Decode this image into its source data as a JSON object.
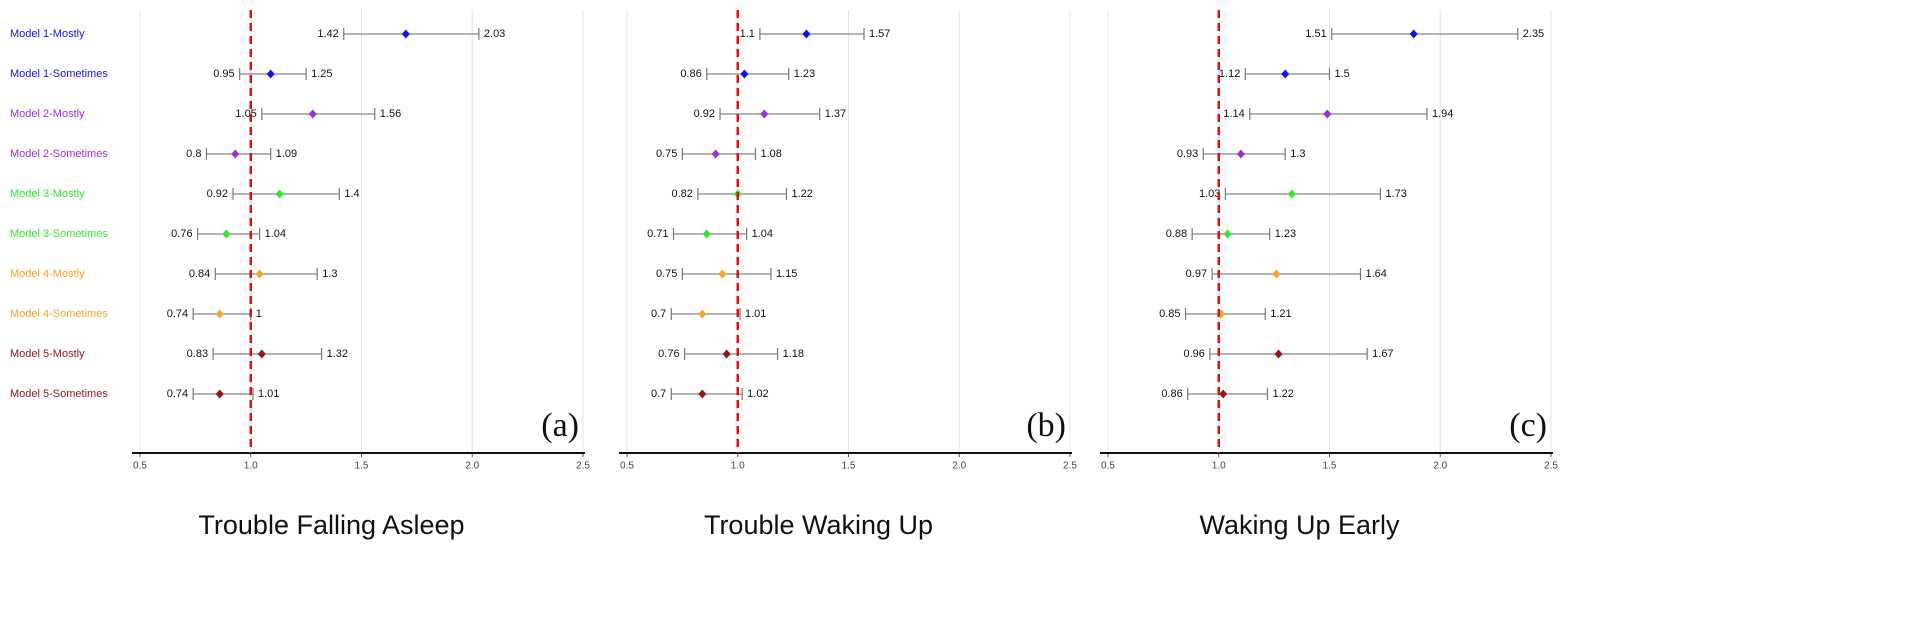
{
  "chart_data": [
    {
      "type": "forest",
      "title": "Trouble Falling Asleep",
      "panel_label": "(a)",
      "categories": [
        "Model 1-Mostly",
        "Model 1-Sometimes",
        "Model 2-Mostly",
        "Model 2-Sometimes",
        "Model 3-Mostly",
        "Model 3-Sometimes",
        "Model 4-Mostly",
        "Model 4-Sometimes",
        "Model 5-Mostly",
        "Model 5-Sometimes"
      ],
      "colors": [
        "#1414e0",
        "#1414e0",
        "#9b30d9",
        "#9b30d9",
        "#2ee82e",
        "#2ee82e",
        "#f5a623",
        "#f5a623",
        "#8b1a1a",
        "#8b1a1a"
      ],
      "estimates": [
        1.7,
        1.09,
        1.28,
        0.93,
        1.13,
        0.89,
        1.04,
        0.86,
        1.05,
        0.86
      ],
      "lower": [
        1.42,
        0.95,
        1.05,
        0.8,
        0.92,
        0.76,
        0.84,
        0.74,
        0.83,
        0.74
      ],
      "upper": [
        2.03,
        1.25,
        1.56,
        1.09,
        1.4,
        1.04,
        1.3,
        1,
        1.32,
        1.01
      ],
      "xlim": [
        0.5,
        2.5
      ],
      "xticks": [
        0.5,
        {
          "value": 1,
          "label": "1.0"
        },
        1.5,
        {
          "value": 2,
          "label": "2.0"
        },
        2.5
      ],
      "reference_line": 1,
      "grid": true,
      "show_categories": true
    },
    {
      "type": "forest",
      "title": "Trouble Waking Up",
      "panel_label": "(b)",
      "categories": [
        "Model 1-Mostly",
        "Model 1-Sometimes",
        "Model 2-Mostly",
        "Model 2-Sometimes",
        "Model 3-Mostly",
        "Model 3-Sometimes",
        "Model 4-Mostly",
        "Model 4-Sometimes",
        "Model 5-Mostly",
        "Model 5-Sometimes"
      ],
      "colors": [
        "#1414e0",
        "#1414e0",
        "#9b30d9",
        "#9b30d9",
        "#2ee82e",
        "#2ee82e",
        "#f5a623",
        "#f5a623",
        "#8b1a1a",
        "#8b1a1a"
      ],
      "estimates": [
        1.31,
        1.03,
        1.12,
        0.9,
        1.0,
        0.86,
        0.93,
        0.84,
        0.95,
        0.84
      ],
      "lower": [
        1.1,
        0.86,
        0.92,
        0.75,
        0.82,
        0.71,
        0.75,
        0.7,
        0.76,
        0.7
      ],
      "upper": [
        1.57,
        1.23,
        1.37,
        1.08,
        1.22,
        1.04,
        1.15,
        1.01,
        1.18,
        1.02
      ],
      "xlim": [
        0.5,
        2.5
      ],
      "xticks": [
        0.5,
        {
          "value": 1,
          "label": "1.0"
        },
        1.5,
        {
          "value": 2,
          "label": "2.0"
        },
        2.5
      ],
      "reference_line": 1,
      "grid": true,
      "show_categories": false
    },
    {
      "type": "forest",
      "title": "Waking Up Early",
      "panel_label": "(c)",
      "categories": [
        "Model 1-Mostly",
        "Model 1-Sometimes",
        "Model 2-Mostly",
        "Model 2-Sometimes",
        "Model 3-Mostly",
        "Model 3-Sometimes",
        "Model 4-Mostly",
        "Model 4-Sometimes",
        "Model 5-Mostly",
        "Model 5-Sometimes"
      ],
      "colors": [
        "#1414e0",
        "#1414e0",
        "#9b30d9",
        "#9b30d9",
        "#2ee82e",
        "#2ee82e",
        "#f5a623",
        "#f5a623",
        "#8b1a1a",
        "#8b1a1a"
      ],
      "estimates": [
        1.88,
        1.3,
        1.49,
        1.1,
        1.33,
        1.04,
        1.26,
        1.01,
        1.27,
        1.02
      ],
      "lower": [
        1.51,
        1.12,
        1.14,
        0.93,
        1.03,
        0.88,
        0.97,
        0.85,
        0.96,
        0.86
      ],
      "upper": [
        2.35,
        1.5,
        1.94,
        1.3,
        1.73,
        1.23,
        1.64,
        1.21,
        1.67,
        1.22
      ],
      "xlim": [
        0.5,
        2.5
      ],
      "xticks": [
        0.5,
        {
          "value": 1,
          "label": "1.0"
        },
        1.5,
        {
          "value": 2,
          "label": "2.0"
        },
        2.5
      ],
      "reference_line": 1,
      "grid": true,
      "show_categories": false
    }
  ]
}
